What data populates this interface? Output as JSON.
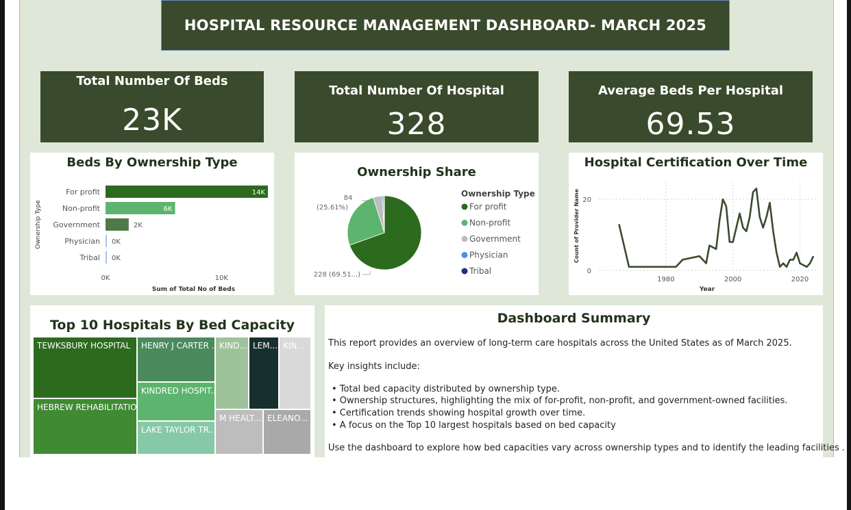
{
  "dashboard": {
    "title": "HOSPITAL RESOURCE MANAGEMENT DASHBOARD- MARCH 2025"
  },
  "kpis": [
    {
      "label": "Total Number Of Beds",
      "value": "23K"
    },
    {
      "label": "Total Number Of Hospital",
      "value": "328"
    },
    {
      "label": "Average Beds Per Hospital",
      "value": "69.53"
    }
  ],
  "colors": {
    "dark_green": "#3a4a2c",
    "for_profit": "#2c6a1e",
    "non_profit": "#5db46e",
    "government": "#bdbdbd",
    "physician": "#4a90e2",
    "tribal": "#1f2d8a",
    "background": "#dfe8d8"
  },
  "chart_data": [
    {
      "type": "bar",
      "orientation": "horizontal",
      "title": "Beds By Ownership Type",
      "xlabel": "Sum of Total No of Beds",
      "ylabel": "Ownership Type",
      "categories": [
        "For profit",
        "Non-profit",
        "Government",
        "Physician",
        "Tribal"
      ],
      "values": [
        14000,
        6000,
        2000,
        0,
        0
      ],
      "data_labels": [
        "14K",
        "6K",
        "2K",
        "0K",
        "0K"
      ],
      "x_ticks": [
        {
          "value": 0,
          "label": "0K"
        },
        {
          "value": 10000,
          "label": "10K"
        }
      ],
      "xlim": [
        0,
        14000
      ],
      "bar_colors": [
        "#2c6a1e",
        "#5db46e",
        "#4f7a46",
        "#a8c4e8",
        "#a8c4e8"
      ]
    },
    {
      "type": "pie",
      "title": "Ownership Share",
      "legend_title": "Ownership Type",
      "legend_position": "right",
      "labels": [
        "For profit",
        "Non-profit",
        "Government",
        "Physician",
        "Tribal"
      ],
      "values": [
        228,
        84,
        13,
        2,
        1
      ],
      "colors": [
        "#2c6a1e",
        "#5db46e",
        "#bdbdbd",
        "#4a90e2",
        "#1f2d8a"
      ],
      "slice_labels": [
        {
          "line1": "228 (69.51...)",
          "line2": ""
        },
        {
          "line1": "84",
          "line2": "(25.61%)"
        }
      ]
    },
    {
      "type": "line",
      "title": "Hospital Certification Over Time",
      "xlabel": "Year",
      "ylabel": "Count of Provider Name",
      "xlim": [
        1960,
        2025
      ],
      "ylim": [
        0,
        25
      ],
      "x_ticks": [
        1980,
        2000,
        2020
      ],
      "y_ticks": [
        0,
        20
      ],
      "grid": true,
      "x": [
        1966,
        1969,
        1972,
        1977,
        1983,
        1985,
        1990,
        1992,
        1993,
        1995,
        1996,
        1997,
        1998,
        1999,
        2000,
        2001,
        2002,
        2003,
        2004,
        2005,
        2006,
        2007,
        2008,
        2009,
        2010,
        2011,
        2012,
        2013,
        2014,
        2015,
        2016,
        2017,
        2018,
        2019,
        2020,
        2022,
        2023,
        2024
      ],
      "y": [
        13,
        1,
        1,
        1,
        1,
        3,
        4,
        2,
        7,
        6,
        14,
        20,
        18,
        8,
        8,
        12,
        16,
        12,
        11,
        15,
        22,
        23,
        15,
        12,
        15,
        19,
        11,
        5,
        1,
        2,
        1,
        3,
        3,
        5,
        2,
        1,
        2,
        4
      ]
    },
    {
      "type": "treemap",
      "title": "Top 10 Hospitals By Bed Capacity",
      "tiles": [
        {
          "label": "TEWKSBURY HOSPITAL",
          "color": "#2c6a1e"
        },
        {
          "label": "HEBREW REHABILITATIO...",
          "color": "#3f8a32"
        },
        {
          "label": "HENRY J CARTER ...",
          "color": "#4b8a5c"
        },
        {
          "label": "KINDRED HOSPIT...",
          "color": "#5db46e"
        },
        {
          "label": "LAKE TAYLOR TR...",
          "color": "#86c9a6"
        },
        {
          "label": "KIND...",
          "color": "#9ec39a"
        },
        {
          "label": "LEM...",
          "color": "#18302d"
        },
        {
          "label": "KIN...",
          "color": "#d9d9d9"
        },
        {
          "label": "M HEALT...",
          "color": "#bdbdbd"
        },
        {
          "label": "ELEANO...",
          "color": "#a9a9a9"
        }
      ]
    }
  ],
  "summary": {
    "title": "Dashboard Summary",
    "intro": "This report provides an overview of long-term care hospitals across the United States as of March 2025.",
    "insights_heading": "Key insights include:",
    "bullets": [
      "• Total bed capacity distributed by ownership type.",
      "• Ownership structures, highlighting the mix of for-profit, non-profit, and government-owned facilities.",
      "• Certification trends showing hospital growth over time.",
      "• A focus on the Top 10 largest hospitals based on bed capacity"
    ],
    "closing": "Use the dashboard to explore how bed capacities vary across ownership types and to identify the leading facilities ."
  }
}
